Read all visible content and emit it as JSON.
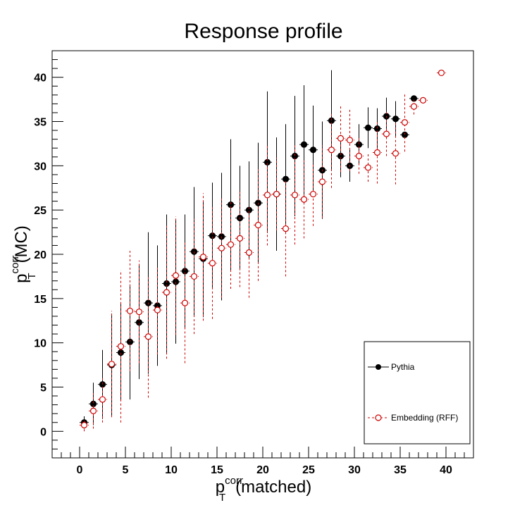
{
  "chart_data": {
    "type": "scatter",
    "title": "Response profile",
    "xlabel": {
      "base": "p",
      "sup": "corr",
      "sub": "T",
      "suffix": "(matched)"
    },
    "ylabel": {
      "base": "p",
      "sup": "corr",
      "sub": "T",
      "suffix": "(MC)"
    },
    "xlim": [
      -3,
      43
    ],
    "ylim": [
      -3,
      43
    ],
    "xticks": [
      0,
      5,
      10,
      15,
      20,
      25,
      30,
      35,
      40
    ],
    "yticks": [
      0,
      5,
      10,
      15,
      20,
      25,
      30,
      35,
      40
    ],
    "grid": false,
    "legend_position": "bottom-right",
    "series": [
      {
        "name": "Pythia",
        "color": "#000000",
        "marker": "filled-circle",
        "line_style": "solid",
        "points": [
          {
            "x": 0.5,
            "y": 1.0,
            "err": 0.7
          },
          {
            "x": 1.5,
            "y": 3.1,
            "err": 2.4
          },
          {
            "x": 2.5,
            "y": 5.3,
            "err": 3.9
          },
          {
            "x": 3.5,
            "y": 7.5,
            "err": 5.8
          },
          {
            "x": 4.5,
            "y": 8.9,
            "err": 5.5
          },
          {
            "x": 5.5,
            "y": 10.1,
            "err": 6.5
          },
          {
            "x": 6.5,
            "y": 12.3,
            "err": 6.4
          },
          {
            "x": 7.5,
            "y": 14.5,
            "err": 8.0
          },
          {
            "x": 8.5,
            "y": 14.2,
            "err": 6.8
          },
          {
            "x": 9.5,
            "y": 16.7,
            "err": 7.8
          },
          {
            "x": 10.5,
            "y": 16.9,
            "err": 7.0
          },
          {
            "x": 11.5,
            "y": 18.1,
            "err": 6.4
          },
          {
            "x": 12.5,
            "y": 20.3,
            "err": 7.3
          },
          {
            "x": 13.5,
            "y": 19.5,
            "err": 6.6
          },
          {
            "x": 14.5,
            "y": 22.1,
            "err": 6.0
          },
          {
            "x": 15.5,
            "y": 22.0,
            "err": 7.2
          },
          {
            "x": 16.5,
            "y": 25.6,
            "err": 7.4
          },
          {
            "x": 17.5,
            "y": 24.1,
            "err": 5.9
          },
          {
            "x": 18.5,
            "y": 25.0,
            "err": 5.5
          },
          {
            "x": 19.5,
            "y": 25.8,
            "err": 6.8
          },
          {
            "x": 20.5,
            "y": 30.4,
            "err": 8.0
          },
          {
            "x": 21.5,
            "y": 26.8,
            "err": 6.4
          },
          {
            "x": 22.5,
            "y": 28.5,
            "err": 6.2
          },
          {
            "x": 23.5,
            "y": 31.1,
            "err": 6.8
          },
          {
            "x": 24.5,
            "y": 32.4,
            "err": 6.7
          },
          {
            "x": 25.5,
            "y": 31.8,
            "err": 5.0
          },
          {
            "x": 26.5,
            "y": 29.5,
            "err": 5.5
          },
          {
            "x": 27.5,
            "y": 35.1,
            "err": 5.7
          },
          {
            "x": 28.5,
            "y": 31.1,
            "err": 2.4
          },
          {
            "x": 29.5,
            "y": 30.0,
            "err": 1.8
          },
          {
            "x": 30.5,
            "y": 32.4,
            "err": 2.3
          },
          {
            "x": 31.5,
            "y": 34.3,
            "err": 2.3
          },
          {
            "x": 32.5,
            "y": 34.2,
            "err": 2.3
          },
          {
            "x": 33.5,
            "y": 35.6,
            "err": 2.1
          },
          {
            "x": 34.5,
            "y": 35.3,
            "err": 2.0
          },
          {
            "x": 35.5,
            "y": 33.5,
            "err": 0
          },
          {
            "x": 36.5,
            "y": 37.6,
            "err": 0
          }
        ]
      },
      {
        "name": "Embedding (RFF)",
        "color": "#cc0000",
        "marker": "open-circle",
        "line_style": "dashed",
        "points": [
          {
            "x": 0.5,
            "y": 0.7,
            "err": 0.7
          },
          {
            "x": 1.5,
            "y": 2.3,
            "err": 2.0
          },
          {
            "x": 2.5,
            "y": 3.6,
            "err": 2.6
          },
          {
            "x": 3.5,
            "y": 7.6,
            "err": 6.0
          },
          {
            "x": 4.5,
            "y": 9.6,
            "err": 8.6
          },
          {
            "x": 5.5,
            "y": 13.6,
            "err": 6.8
          },
          {
            "x": 6.5,
            "y": 13.5,
            "err": 5.8
          },
          {
            "x": 7.5,
            "y": 10.7,
            "err": 6.9
          },
          {
            "x": 8.5,
            "y": 13.7,
            "err": 5.0
          },
          {
            "x": 9.5,
            "y": 15.7,
            "err": 7.5
          },
          {
            "x": 10.5,
            "y": 17.6,
            "err": 6.7
          },
          {
            "x": 11.5,
            "y": 14.5,
            "err": 6.8
          },
          {
            "x": 12.5,
            "y": 17.5,
            "err": 6.5
          },
          {
            "x": 13.5,
            "y": 19.7,
            "err": 7.2
          },
          {
            "x": 14.5,
            "y": 19.0,
            "err": 6.3
          },
          {
            "x": 15.5,
            "y": 20.7,
            "err": 5.6
          },
          {
            "x": 16.5,
            "y": 21.1,
            "err": 5.0
          },
          {
            "x": 17.5,
            "y": 21.8,
            "err": 5.5
          },
          {
            "x": 18.5,
            "y": 20.2,
            "err": 5.1
          },
          {
            "x": 19.5,
            "y": 23.3,
            "err": 6.3
          },
          {
            "x": 20.5,
            "y": 26.7,
            "err": 5.7
          },
          {
            "x": 21.5,
            "y": 26.8,
            "err": 4.1
          },
          {
            "x": 22.5,
            "y": 22.9,
            "err": 5.4
          },
          {
            "x": 23.5,
            "y": 26.7,
            "err": 5.6
          },
          {
            "x": 24.5,
            "y": 26.2,
            "err": 4.4
          },
          {
            "x": 25.5,
            "y": 26.8,
            "err": 3.6
          },
          {
            "x": 26.5,
            "y": 28.2,
            "err": 4.1
          },
          {
            "x": 27.5,
            "y": 31.8,
            "err": 4.3
          },
          {
            "x": 28.5,
            "y": 33.1,
            "err": 3.8
          },
          {
            "x": 29.5,
            "y": 32.9,
            "err": 3.5
          },
          {
            "x": 30.5,
            "y": 31.1,
            "err": 2.0
          },
          {
            "x": 31.5,
            "y": 29.8,
            "err": 1.6
          },
          {
            "x": 32.5,
            "y": 31.5,
            "err": 3.5
          },
          {
            "x": 33.5,
            "y": 33.6,
            "err": 2.5
          },
          {
            "x": 34.5,
            "y": 31.4,
            "err": 3.5
          },
          {
            "x": 35.5,
            "y": 34.9,
            "err": 3.3
          },
          {
            "x": 36.5,
            "y": 36.7,
            "err": 0.9
          },
          {
            "x": 37.5,
            "y": 37.4,
            "err": 0
          },
          {
            "x": 39.5,
            "y": 40.5,
            "err": 0
          }
        ]
      }
    ]
  }
}
